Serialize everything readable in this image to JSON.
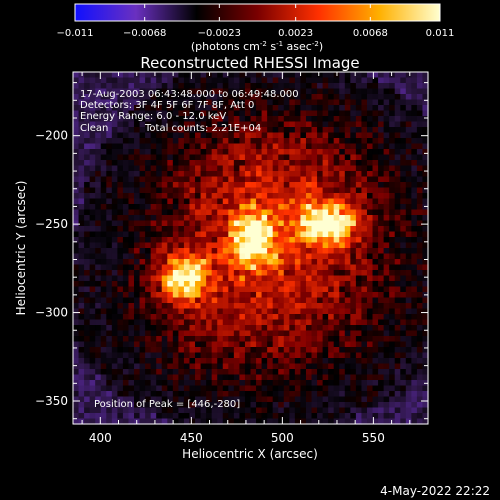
{
  "chart_data": {
    "type": "heatmap",
    "title": "Reconstructed RHESSI Image",
    "colorbar": {
      "ticks": [
        "-0.011",
        "-0.0068",
        "-0.0023",
        "0.0023",
        "0.0068",
        "0.011"
      ],
      "range": [
        -0.011,
        0.011
      ],
      "unit_parts": [
        "(photons cm",
        "-2",
        " s",
        "-1",
        " asec",
        "-2",
        ")"
      ],
      "colors": [
        "#1010ff",
        "#6a30c0",
        "#000000",
        "#7a0000",
        "#ff3000",
        "#ffb000",
        "#ffffd0"
      ]
    },
    "xlabel": "Heliocentric X (arcsec)",
    "ylabel": "Heliocentric Y (arcsec)",
    "xlim": [
      385,
      580
    ],
    "ylim": [
      -363,
      -164
    ],
    "xticks": [
      {
        "value": 400,
        "label": "400"
      },
      {
        "value": 450,
        "label": "450"
      },
      {
        "value": 500,
        "label": "500"
      },
      {
        "value": 550,
        "label": "550"
      }
    ],
    "yticks": [
      {
        "value": -200,
        "label": "−200"
      },
      {
        "value": -250,
        "label": "−250"
      },
      {
        "value": -300,
        "label": "−300"
      },
      {
        "value": -350,
        "label": "−350"
      }
    ],
    "sources": [
      {
        "x": 446,
        "y": -280,
        "amp": 1.0,
        "sx": 9,
        "sy": 9
      },
      {
        "x": 484,
        "y": -259,
        "amp": 0.85,
        "sx": 8,
        "sy": 11
      },
      {
        "x": 524,
        "y": -250,
        "amp": 0.95,
        "sx": 11,
        "sy": 8
      },
      {
        "x": 500,
        "y": -262,
        "amp": 0.35,
        "sx": 50,
        "sy": 45
      },
      {
        "x": 490,
        "y": -230,
        "amp": 0.25,
        "sx": 40,
        "sy": 35
      },
      {
        "x": 475,
        "y": -305,
        "amp": 0.2,
        "sx": 45,
        "sy": 30
      }
    ],
    "annotations": [
      "17-Aug-2003 06:43:48.000 to 06:49:48.000",
      "Detectors: 3F 4F 5F 6F 7F 8F, Att 0",
      "Energy Range: 6.0 - 12.0 keV",
      "Clean",
      "Total counts: 2.21E+04"
    ],
    "peak_label": "Position of Peak = [446,-280]",
    "peak": [
      446,
      -280
    ]
  },
  "footer": {
    "timestamp": "4-May-2022 22:22"
  }
}
